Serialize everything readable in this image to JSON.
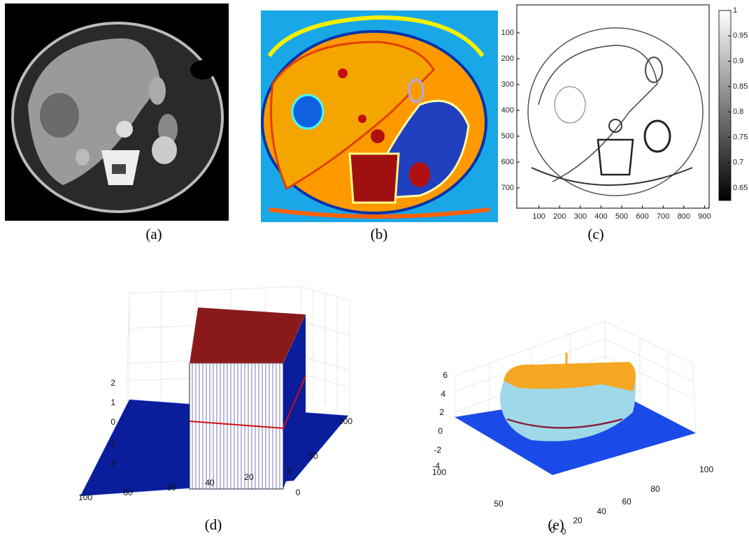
{
  "panels": [
    {
      "caption": "(a)"
    },
    {
      "caption": "(b)"
    },
    {
      "caption": "(c)",
      "x_ticks": [
        100,
        200,
        300,
        400,
        500,
        600,
        700,
        800,
        900
      ],
      "y_ticks": [
        100,
        200,
        300,
        400,
        500,
        600,
        700
      ],
      "colorbar_ticks": [
        1,
        0.95,
        0.9,
        0.85,
        0.8,
        0.75,
        0.7,
        0.65
      ]
    },
    {
      "caption": "(d)",
      "z_ticks": [
        2,
        1,
        0,
        -1,
        -2
      ],
      "x_ticks": [
        100,
        80,
        60,
        40,
        20,
        0
      ],
      "y_ticks": [
        0,
        50,
        100
      ]
    },
    {
      "caption": "(e)",
      "z_ticks": [
        6,
        4,
        2,
        0,
        -2,
        -4
      ],
      "x_ticks": [
        100,
        50,
        0
      ],
      "y_ticks": [
        0,
        20,
        40,
        60,
        80,
        100
      ]
    }
  ]
}
